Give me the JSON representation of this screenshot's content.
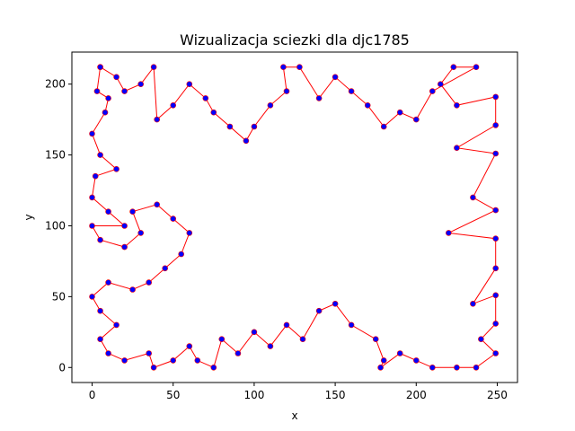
{
  "chart_data": {
    "type": "scatter",
    "title": "Wizualizacja sciezki dla djc1785",
    "xlabel": "x",
    "ylabel": "y",
    "xlim": [
      -12.5,
      262.5
    ],
    "ylim": [
      -10.6,
      222.6
    ],
    "xticks": [
      0,
      50,
      100,
      150,
      200,
      250
    ],
    "yticks": [
      0,
      50,
      100,
      150,
      200
    ],
    "grid": false,
    "colors": {
      "points": "#0000ff",
      "path": "#ff0000"
    },
    "point_count_approx": 1785,
    "sample_path": [
      [
        5,
        212
      ],
      [
        3,
        195
      ],
      [
        10,
        190
      ],
      [
        8,
        180
      ],
      [
        0,
        165
      ],
      [
        5,
        150
      ],
      [
        15,
        140
      ],
      [
        2,
        135
      ],
      [
        0,
        120
      ],
      [
        10,
        110
      ],
      [
        20,
        100
      ],
      [
        0,
        100
      ],
      [
        5,
        90
      ],
      [
        20,
        85
      ],
      [
        30,
        95
      ],
      [
        25,
        110
      ],
      [
        40,
        115
      ],
      [
        50,
        105
      ],
      [
        60,
        95
      ],
      [
        55,
        80
      ],
      [
        45,
        70
      ],
      [
        35,
        60
      ],
      [
        25,
        55
      ],
      [
        10,
        60
      ],
      [
        0,
        50
      ],
      [
        5,
        40
      ],
      [
        15,
        30
      ],
      [
        5,
        20
      ],
      [
        10,
        10
      ],
      [
        20,
        5
      ],
      [
        35,
        10
      ],
      [
        38,
        0
      ],
      [
        50,
        5
      ],
      [
        60,
        15
      ],
      [
        65,
        5
      ],
      [
        75,
        0
      ],
      [
        80,
        20
      ],
      [
        90,
        10
      ],
      [
        100,
        25
      ],
      [
        110,
        15
      ],
      [
        120,
        30
      ],
      [
        130,
        20
      ],
      [
        140,
        40
      ],
      [
        150,
        45
      ],
      [
        160,
        30
      ],
      [
        175,
        20
      ],
      [
        180,
        5
      ],
      [
        178,
        0
      ],
      [
        190,
        10
      ],
      [
        200,
        5
      ],
      [
        210,
        0
      ],
      [
        225,
        0
      ],
      [
        237,
        0
      ],
      [
        249,
        10
      ],
      [
        240,
        20
      ],
      [
        249,
        31
      ],
      [
        249,
        51
      ],
      [
        235,
        45
      ],
      [
        249,
        70
      ],
      [
        249,
        91
      ],
      [
        220,
        95
      ],
      [
        249,
        111
      ],
      [
        235,
        120
      ],
      [
        249,
        151
      ],
      [
        225,
        155
      ],
      [
        249,
        171
      ],
      [
        249,
        191
      ],
      [
        225,
        185
      ],
      [
        215,
        200
      ],
      [
        223,
        212
      ],
      [
        237,
        212
      ],
      [
        210,
        195
      ],
      [
        200,
        175
      ],
      [
        190,
        180
      ],
      [
        180,
        170
      ],
      [
        170,
        185
      ],
      [
        160,
        195
      ],
      [
        150,
        205
      ],
      [
        140,
        190
      ],
      [
        128,
        212
      ],
      [
        118,
        212
      ],
      [
        120,
        195
      ],
      [
        110,
        185
      ],
      [
        100,
        170
      ],
      [
        95,
        160
      ],
      [
        85,
        170
      ],
      [
        75,
        180
      ],
      [
        70,
        190
      ],
      [
        60,
        200
      ],
      [
        50,
        185
      ],
      [
        40,
        175
      ],
      [
        38,
        212
      ],
      [
        30,
        200
      ],
      [
        20,
        195
      ],
      [
        15,
        205
      ],
      [
        5,
        212
      ]
    ]
  }
}
